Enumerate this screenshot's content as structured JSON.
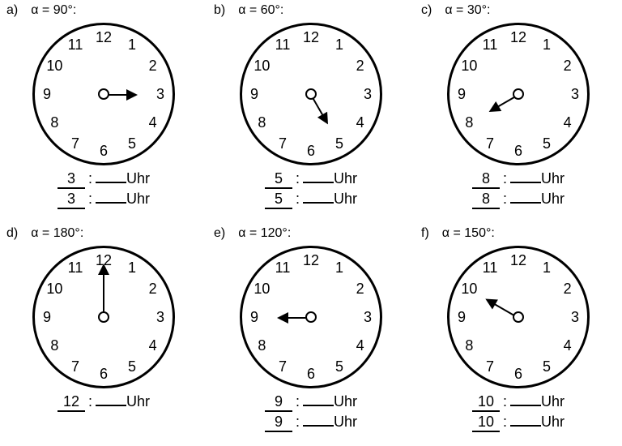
{
  "uhr_text": "Uhr",
  "clock_style": {
    "diameter": 170,
    "border_width": 3,
    "border_color": "#000000",
    "number_radius": 70,
    "number_fontsize": 18,
    "hand_color": "#000000",
    "pivot_diameter": 10,
    "background_color": "#ffffff"
  },
  "numerals": [
    "12",
    "1",
    "2",
    "3",
    "4",
    "5",
    "6",
    "7",
    "8",
    "9",
    "10",
    "11"
  ],
  "problems": [
    {
      "letter": "a)",
      "angle_label": "α = 90°:",
      "hand_deg": 0,
      "hand_len": 40,
      "answers": [
        "3",
        "3"
      ]
    },
    {
      "letter": "b)",
      "angle_label": "α = 60°:",
      "hand_deg": 60,
      "hand_len": 40,
      "answers": [
        "5",
        "5"
      ]
    },
    {
      "letter": "c)",
      "angle_label": "α = 30°:",
      "hand_deg": 150,
      "hand_len": 40,
      "answers": [
        "8",
        "8"
      ]
    },
    {
      "letter": "d)",
      "angle_label": "α = 180°:",
      "hand_deg": -90,
      "hand_len": 65,
      "answers": [
        "12"
      ]
    },
    {
      "letter": "e)",
      "angle_label": "α = 120°:",
      "hand_deg": 180,
      "hand_len": 40,
      "answers": [
        "9",
        "9"
      ]
    },
    {
      "letter": "f)",
      "angle_label": "α = 150°:",
      "hand_deg": -150,
      "hand_len": 45,
      "answers": [
        "10",
        "10"
      ]
    }
  ]
}
